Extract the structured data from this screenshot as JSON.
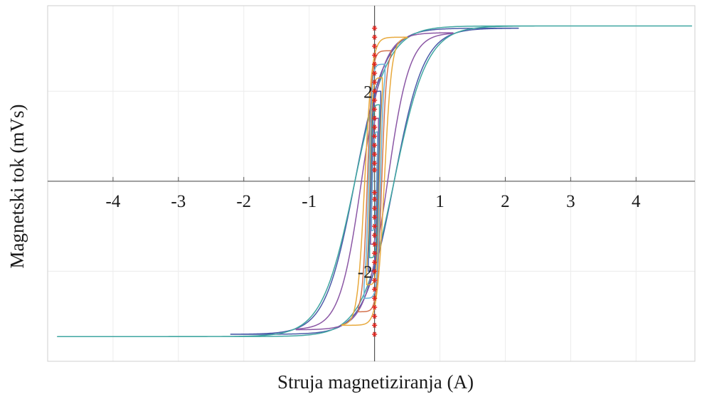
{
  "chart_data": {
    "type": "line",
    "title": "",
    "xlabel": "Struja magnetiziranja (A)",
    "ylabel": "Magnetski tok (mVs)",
    "xlim": [
      -5,
      4.9
    ],
    "ylim": [
      -4,
      3.9
    ],
    "x_ticks": [
      -4,
      -3,
      -2,
      -1,
      1,
      2,
      3,
      4
    ],
    "x_tick_labels": [
      "-4",
      "-3",
      "-2",
      "-1",
      "1",
      "2",
      "3",
      "4"
    ],
    "y_ticks": [
      -2,
      2
    ],
    "y_tick_labels": [
      "-2",
      "2"
    ],
    "grid": true,
    "legend": "none",
    "series": [
      {
        "color": "#4a5aa8",
        "hc": 0.3,
        "bs": 3.4,
        "imax": 2.2,
        "k": 2.2
      },
      {
        "color": "#3fa6a1",
        "hc": 0.3,
        "bs": 3.45,
        "imax": 4.85,
        "k": 2.0
      },
      {
        "color": "#8b57a5",
        "hc": 0.2,
        "bs": 3.3,
        "imax": 1.2,
        "k": 3.0
      },
      {
        "color": "#e8a93c",
        "hc": 0.15,
        "bs": 3.2,
        "imax": 0.5,
        "k": 9.0
      },
      {
        "color": "#d4734e",
        "hc": 0.11,
        "bs": 2.9,
        "imax": 0.25,
        "k": 14.0
      },
      {
        "color": "#68b1d8",
        "hc": 0.09,
        "bs": 2.6,
        "imax": 0.16,
        "k": 20.0
      },
      {
        "color": "#e8a93c",
        "hc": 0.07,
        "bs": 2.3,
        "imax": 0.12,
        "k": 26.0
      },
      {
        "color": "#4a5aa8",
        "hc": 0.06,
        "bs": 2.0,
        "imax": 0.095,
        "k": 32.0
      },
      {
        "color": "#3fa6a1",
        "hc": 0.05,
        "bs": 1.7,
        "imax": 0.075,
        "k": 38.0
      },
      {
        "color": "#8b57a5",
        "hc": 0.04,
        "bs": 1.4,
        "imax": 0.06,
        "k": 44.0
      },
      {
        "color": "#68b1d8",
        "hc": 0.03,
        "bs": 1.1,
        "imax": 0.045,
        "k": 50.0
      }
    ],
    "tip_markers": {
      "color": "#e0231c",
      "x": 0.0,
      "y": [
        3.4,
        3.2,
        3.0,
        2.8,
        2.6,
        2.4,
        2.2,
        2.0,
        1.8,
        1.6,
        1.4,
        1.2,
        1.0,
        0.8,
        0.6,
        0.4,
        0.25,
        -0.25,
        -0.4,
        -0.6,
        -0.8,
        -1.0,
        -1.2,
        -1.4,
        -1.6,
        -1.8,
        -2.0,
        -2.2,
        -2.4,
        -2.6,
        -2.8,
        -3.0,
        -3.2,
        -3.4
      ]
    }
  }
}
